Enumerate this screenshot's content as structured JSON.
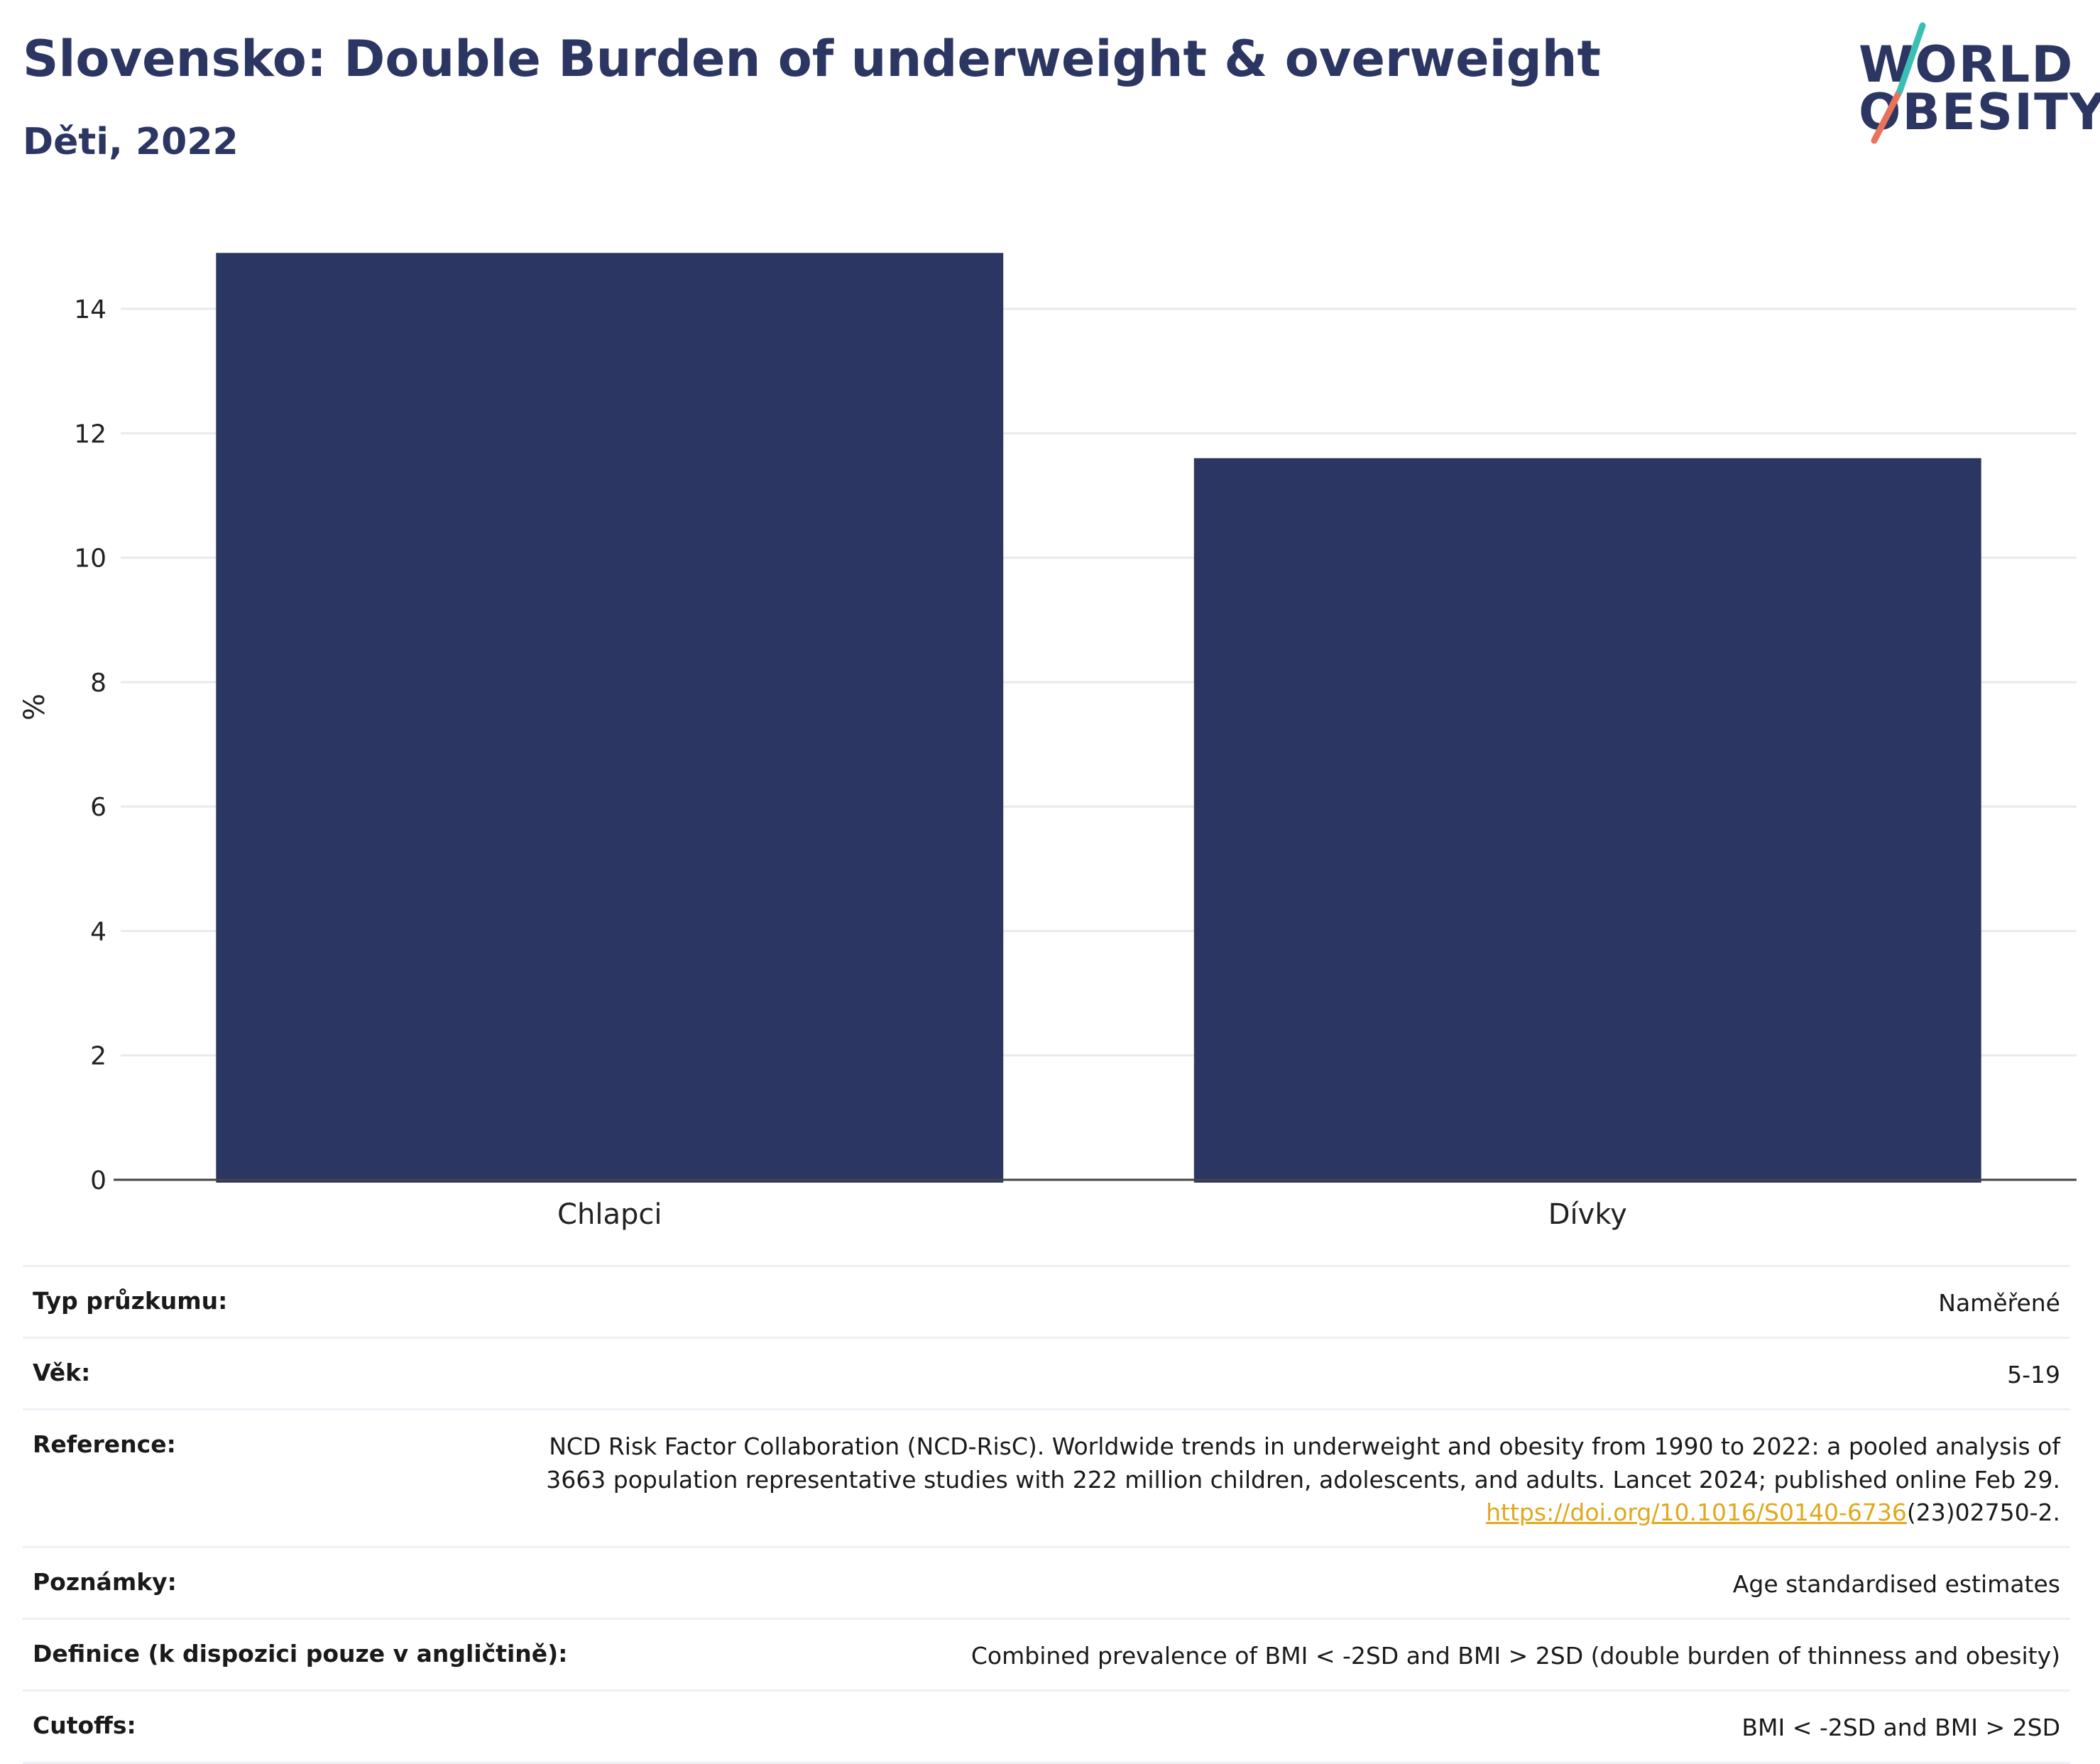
{
  "header": {
    "title": "Slovensko: Double Burden of underweight & overweight",
    "subtitle": "Děti, 2022"
  },
  "logo": {
    "line1": "WORLD",
    "line2": "OBESITY",
    "color_dark": "#2b3662",
    "color_teal": "#3bbfb4",
    "color_coral": "#e8735a"
  },
  "chart_data": {
    "type": "bar",
    "categories": [
      "Chlapci",
      "Dívky"
    ],
    "values": [
      14.9,
      11.6
    ],
    "title": "",
    "xlabel": "",
    "ylabel": "%",
    "ylim": [
      0,
      15.2
    ],
    "yticks": [
      0,
      2,
      4,
      6,
      8,
      10,
      12,
      14
    ],
    "grid": true,
    "bar_color": "#2b3662"
  },
  "meta": {
    "survey_type": {
      "label": "Typ průzkumu:",
      "value": "Naměřené"
    },
    "age": {
      "label": "Věk:",
      "value": "5-19"
    },
    "reference": {
      "label": "Reference:",
      "line1": "NCD Risk Factor Collaboration (NCD-RisC). Worldwide trends in underweight and obesity from 1990 to 2022: a pooled analysis of",
      "line2": "3663 population representative studies with 222 million children, adolescents, and adults. Lancet 2024; published online Feb 29.",
      "link": "https://doi.org/10.1016/S0140-6736",
      "suffix": "(23)02750-2."
    },
    "notes": {
      "label": "Poznámky:",
      "value": "Age standardised estimates"
    },
    "definition": {
      "label": "Definice (k dispozici pouze v angličtině):",
      "value": "Combined prevalence of BMI < -2SD and BMI > 2SD (double burden of thinness and obesity)"
    },
    "cutoffs": {
      "label": "Cutoffs:",
      "value": "BMI < -2SD and BMI > 2SD"
    }
  }
}
